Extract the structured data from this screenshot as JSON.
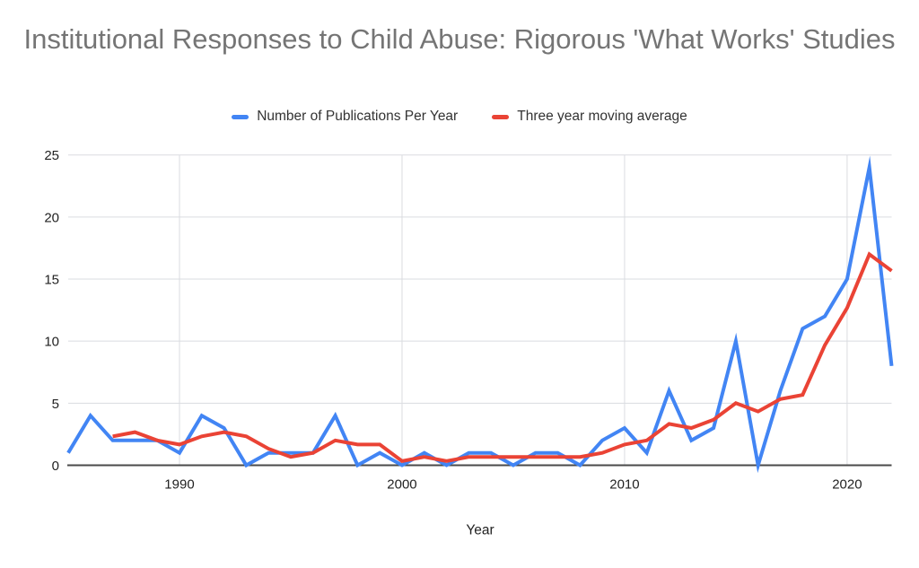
{
  "title": "Institutional Responses to Child Abuse: Rigorous 'What Works' Studies",
  "legend": {
    "items": [
      {
        "label": "Number of Publications Per Year",
        "color": "#4285F4"
      },
      {
        "label": "Three year moving average",
        "color": "#EA4335"
      }
    ]
  },
  "chart_data": {
    "type": "line",
    "title": "Institutional Responses to Child Abuse: Rigorous 'What Works' Studies",
    "xlabel": "Year",
    "ylabel": "",
    "xlim": [
      1985,
      2022
    ],
    "ylim": [
      0,
      25
    ],
    "grid": true,
    "legend_position": "top",
    "y_ticks": [
      0,
      5,
      10,
      15,
      20,
      25
    ],
    "x_tick_years": [
      1990,
      2000,
      2010,
      2020
    ],
    "series": [
      {
        "name": "Number of Publications Per Year",
        "color": "#4285F4",
        "start_year": 1985,
        "x": [
          1985,
          1986,
          1987,
          1988,
          1989,
          1990,
          1991,
          1992,
          1993,
          1994,
          1995,
          1996,
          1997,
          1998,
          1999,
          2000,
          2001,
          2002,
          2003,
          2004,
          2005,
          2006,
          2007,
          2008,
          2009,
          2010,
          2011,
          2012,
          2013,
          2014,
          2015,
          2016,
          2017,
          2018,
          2019,
          2020,
          2021,
          2022
        ],
        "values": [
          1,
          4,
          2,
          2,
          2,
          1,
          4,
          3,
          0,
          1,
          1,
          1,
          4,
          0,
          1,
          0,
          1,
          0,
          1,
          1,
          0,
          1,
          1,
          0,
          2,
          3,
          1,
          6,
          2,
          3,
          10,
          0,
          6,
          11,
          12,
          15,
          24,
          8
        ]
      },
      {
        "name": "Three year moving average",
        "color": "#EA4335",
        "start_year": 1987,
        "x": [
          1987,
          1988,
          1989,
          1990,
          1991,
          1992,
          1993,
          1994,
          1995,
          1996,
          1997,
          1998,
          1999,
          2000,
          2001,
          2002,
          2003,
          2004,
          2005,
          2006,
          2007,
          2008,
          2009,
          2010,
          2011,
          2012,
          2013,
          2014,
          2015,
          2016,
          2017,
          2018,
          2019,
          2020,
          2021,
          2022
        ],
        "values": [
          2.33,
          2.67,
          2,
          1.67,
          2.33,
          2.67,
          2.33,
          1.33,
          0.67,
          1,
          2,
          1.67,
          1.67,
          0.33,
          0.67,
          0.33,
          0.67,
          0.67,
          0.67,
          0.67,
          0.67,
          0.67,
          1,
          1.67,
          2,
          3.33,
          3,
          3.67,
          5,
          4.33,
          5.33,
          5.67,
          9.67,
          12.67,
          17,
          15.67
        ]
      }
    ]
  }
}
